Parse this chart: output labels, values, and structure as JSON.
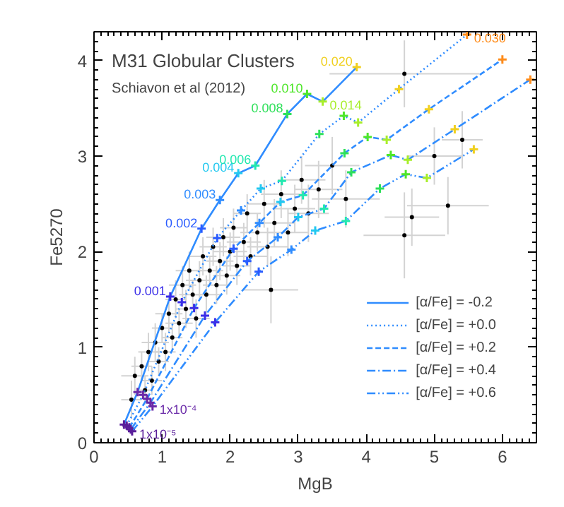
{
  "chart_data": {
    "type": "line",
    "title": "M31 Globular Clusters",
    "subtitle": "Schiavon et al (2012)",
    "xlabel": "MgB",
    "ylabel": "Fe5270",
    "xlim": [
      0,
      6.5
    ],
    "ylim": [
      0,
      4.3
    ],
    "xticks": [
      0,
      1,
      2,
      3,
      4,
      5,
      6
    ],
    "yticks": [
      0,
      1,
      2,
      3,
      4
    ],
    "grid": false,
    "legend": "bottom right",
    "marker": "cross",
    "series": [
      {
        "name": "[α/Fe] = -0.2",
        "color": "#2f8cff",
        "line_style": "solid",
        "x": [
          0.44,
          0.64,
          1.12,
          1.58,
          1.85,
          2.12,
          2.37,
          2.84,
          3.13,
          3.36,
          3.86
        ],
        "values": [
          0.19,
          0.53,
          1.53,
          2.24,
          2.54,
          2.82,
          2.9,
          3.44,
          3.65,
          3.57,
          3.93
        ],
        "colors": [
          "#5a1e9a",
          "#6a2aa8",
          "#3a2ee8",
          "#2a5cff",
          "#2f8cff",
          "#22c8f0",
          "#22e8b0",
          "#2ee05a",
          "#4ee62a",
          "#a8ee2a",
          "#f0d020"
        ]
      },
      {
        "name": "[α/Fe] = +0.0",
        "color": "#2f8cff",
        "line_style": "dotted",
        "x": [
          0.48,
          0.72,
          1.29,
          1.81,
          2.16,
          2.45,
          2.76,
          3.31,
          3.67,
          3.88,
          4.48,
          5.48
        ],
        "values": [
          0.18,
          0.5,
          1.47,
          2.14,
          2.43,
          2.66,
          2.74,
          3.23,
          3.42,
          3.35,
          3.7,
          4.27
        ],
        "colors": [
          "#5a1e9a",
          "#6a2aa8",
          "#3a2ee8",
          "#2a5cff",
          "#2f8cff",
          "#22c8f0",
          "#22e8b0",
          "#2ee05a",
          "#4ee62a",
          "#a8ee2a",
          "#f0d020",
          "#ff8c1a"
        ]
      },
      {
        "name": "[α/Fe] = +0.2",
        "color": "#2f8cff",
        "line_style": "dashed",
        "x": [
          0.52,
          0.78,
          1.47,
          2.05,
          2.43,
          2.74,
          3.07,
          3.68,
          4.02,
          4.3,
          4.92,
          6.0
        ],
        "values": [
          0.16,
          0.46,
          1.41,
          2.03,
          2.3,
          2.52,
          2.59,
          3.03,
          3.2,
          3.17,
          3.49,
          4.01
        ],
        "colors": [
          "#5a1e9a",
          "#6a2aa8",
          "#3a2ee8",
          "#2a5cff",
          "#2f8cff",
          "#22c8f0",
          "#22e8b0",
          "#2ee05a",
          "#4ee62a",
          "#a8ee2a",
          "#f0d020",
          "#ff8c1a"
        ]
      },
      {
        "name": "[α/Fe] = +0.4",
        "color": "#2f8cff",
        "line_style": "dashdot",
        "x": [
          0.54,
          0.83,
          1.63,
          2.25,
          2.7,
          3.0,
          3.38,
          3.78,
          4.36,
          4.61,
          5.3,
          6.41
        ],
        "values": [
          0.14,
          0.42,
          1.33,
          1.9,
          2.15,
          2.36,
          2.45,
          2.83,
          3.01,
          2.96,
          3.28,
          3.8
        ],
        "colors": [
          "#5a1e9a",
          "#6a2aa8",
          "#3a2ee8",
          "#2a5cff",
          "#2f8cff",
          "#22c8f0",
          "#22e8b0",
          "#2ee05a",
          "#4ee62a",
          "#a8ee2a",
          "#f0d020",
          "#ff8c1a"
        ]
      },
      {
        "name": "[α/Fe] = +0.6",
        "color": "#2f8cff",
        "line_style": "dashdotdot",
        "x": [
          0.56,
          0.86,
          1.78,
          2.42,
          2.9,
          3.25,
          3.7,
          4.2,
          4.58,
          4.89,
          5.58
        ],
        "values": [
          0.12,
          0.38,
          1.26,
          1.79,
          2.02,
          2.22,
          2.32,
          2.66,
          2.81,
          2.77,
          3.07
        ],
        "colors": [
          "#5a1e9a",
          "#6a2aa8",
          "#3a2ee8",
          "#2a5cff",
          "#2f8cff",
          "#22c8f0",
          "#22e8b0",
          "#2ee05a",
          "#4ee62a",
          "#a8ee2a",
          "#f0d020"
        ]
      },
      {
        "type": "scatter",
        "color": "#000000",
        "x": [
          0.55,
          0.6,
          0.7,
          0.75,
          0.8,
          0.85,
          0.9,
          0.95,
          1.0,
          1.05,
          1.1,
          1.15,
          1.2,
          1.25,
          1.3,
          1.35,
          1.4,
          1.45,
          1.5,
          1.55,
          1.6,
          1.65,
          1.7,
          1.75,
          1.8,
          1.85,
          1.9,
          1.95,
          2.0,
          2.05,
          2.1,
          2.2,
          2.25,
          2.3,
          2.4,
          2.5,
          2.55,
          2.65,
          2.75,
          2.85,
          2.95,
          3.05,
          3.15,
          3.3,
          3.5,
          3.7,
          4.56,
          5.2,
          4.67,
          4.56,
          5.0,
          5.41,
          2.6
        ],
        "values": [
          0.45,
          0.7,
          0.8,
          0.55,
          0.95,
          0.65,
          1.05,
          0.85,
          1.2,
          0.95,
          1.35,
          1.1,
          1.5,
          1.25,
          1.65,
          1.4,
          1.8,
          1.55,
          1.3,
          1.7,
          1.95,
          1.55,
          1.8,
          2.05,
          1.65,
          1.9,
          2.15,
          1.75,
          2.0,
          2.25,
          1.85,
          2.1,
          2.4,
          1.95,
          2.2,
          2.5,
          2.05,
          2.3,
          2.6,
          2.2,
          2.45,
          2.75,
          2.4,
          2.65,
          2.9,
          2.55,
          3.86,
          2.48,
          2.36,
          2.17,
          3.0,
          3.17,
          1.6
        ],
        "xerrors": [
          0.15,
          0.2,
          0.15,
          0.1,
          0.15,
          0.15,
          0.2,
          0.15,
          0.15,
          0.15,
          0.2,
          0.15,
          0.15,
          0.2,
          0.2,
          0.15,
          0.2,
          0.2,
          0.2,
          0.2,
          0.2,
          0.2,
          0.2,
          0.2,
          0.2,
          0.2,
          0.25,
          0.2,
          0.25,
          0.2,
          0.2,
          0.25,
          0.2,
          0.25,
          0.25,
          0.25,
          0.3,
          0.3,
          0.3,
          0.3,
          0.3,
          0.35,
          0.3,
          0.35,
          0.4,
          0.5,
          1.1,
          0.6,
          0.4,
          0.6,
          0.4,
          0.3,
          0.4
        ],
        "errors": [
          0.2,
          0.2,
          0.15,
          0.15,
          0.2,
          0.15,
          0.2,
          0.15,
          0.15,
          0.2,
          0.2,
          0.15,
          0.2,
          0.15,
          0.2,
          0.2,
          0.2,
          0.15,
          0.2,
          0.2,
          0.2,
          0.2,
          0.15,
          0.2,
          0.2,
          0.2,
          0.2,
          0.2,
          0.2,
          0.2,
          0.2,
          0.2,
          0.2,
          0.2,
          0.2,
          0.25,
          0.2,
          0.25,
          0.25,
          0.25,
          0.25,
          0.25,
          0.3,
          0.3,
          0.3,
          0.3,
          0.35,
          0.3,
          0.3,
          0.45,
          0.3,
          0.3,
          0.35
        ]
      }
    ],
    "annotations": [
      {
        "text": "1x10⁻⁵",
        "x": 0.56,
        "y": 0.12
      },
      {
        "text": "1x10⁻⁴",
        "x": 0.86,
        "y": 0.38
      },
      {
        "text": "0.001",
        "x": 1.12,
        "y": 1.53
      },
      {
        "text": "0.002",
        "x": 1.58,
        "y": 2.24
      },
      {
        "text": "0.003",
        "x": 1.85,
        "y": 2.54
      },
      {
        "text": "0.004",
        "x": 2.12,
        "y": 2.82
      },
      {
        "text": "0.006",
        "x": 2.37,
        "y": 2.9
      },
      {
        "text": "0.008",
        "x": 2.84,
        "y": 3.44
      },
      {
        "text": "0.010",
        "x": 3.13,
        "y": 3.65
      },
      {
        "text": "0.014",
        "x": 3.36,
        "y": 3.57
      },
      {
        "text": "0.020",
        "x": 3.86,
        "y": 3.93
      },
      {
        "text": "0.030",
        "x": 5.48,
        "y": 4.27
      }
    ]
  }
}
